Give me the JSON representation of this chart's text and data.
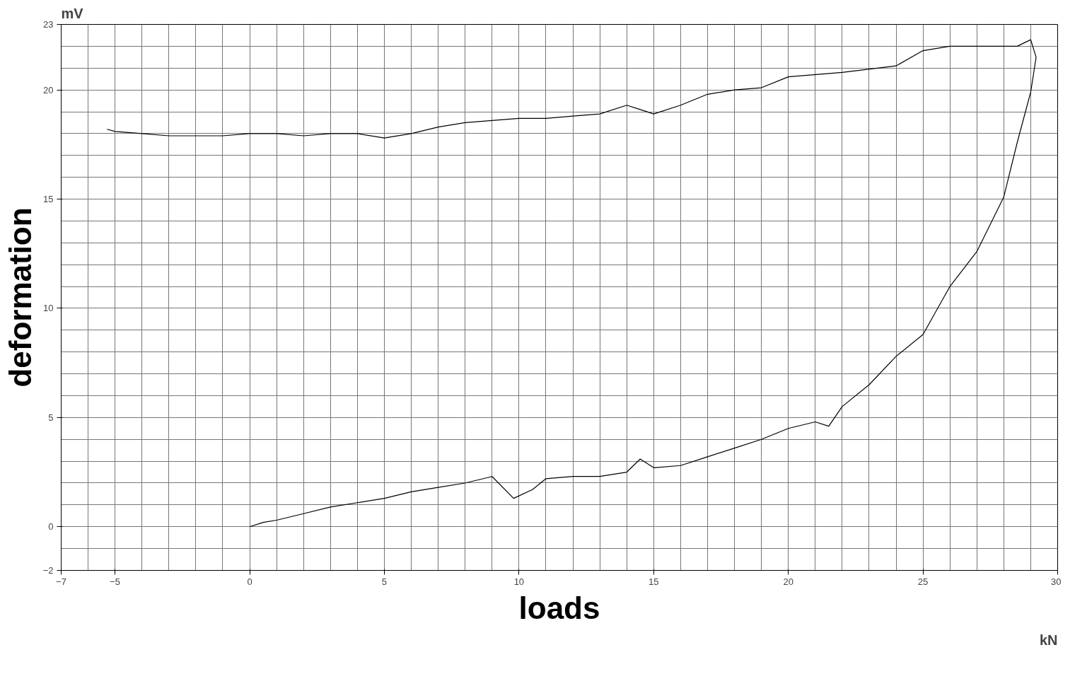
{
  "chart_data": {
    "type": "line",
    "xlabel": "loads",
    "ylabel": "deformation",
    "annotations": [
      "mV",
      "kN"
    ],
    "xlim": [
      -7,
      30
    ],
    "xticks": [
      -7,
      -5,
      0,
      5,
      10,
      15,
      20,
      25,
      30
    ],
    "ylim": [
      -2,
      23
    ],
    "yticks": [
      -2,
      0,
      5,
      10,
      15,
      20,
      23
    ],
    "grid": true,
    "series": [
      {
        "color": "#000000",
        "x": [
          0,
          0.5,
          1,
          2,
          3,
          4,
          5,
          6,
          7,
          8,
          9,
          9.8,
          10.5,
          11,
          12,
          13,
          14,
          14.5,
          15,
          16,
          17,
          18,
          19,
          20,
          21,
          21.5,
          22,
          23,
          24,
          25,
          26,
          27,
          28,
          28.5,
          29,
          29.2,
          29,
          28.5,
          27,
          26,
          25,
          24,
          22,
          20,
          19,
          18,
          17,
          16,
          15,
          14.5,
          14,
          13,
          12,
          11,
          10,
          9,
          8,
          7,
          6,
          5,
          4,
          3,
          2,
          1,
          0,
          -1,
          -2,
          -3,
          -4,
          -5,
          -5.3
        ],
        "values": [
          0,
          0.2,
          0.3,
          0.6,
          0.9,
          1.1,
          1.3,
          1.6,
          1.8,
          2.0,
          2.3,
          1.3,
          1.7,
          2.2,
          2.3,
          2.3,
          2.5,
          3.1,
          2.7,
          2.8,
          3.2,
          3.6,
          4.0,
          4.5,
          4.8,
          4.6,
          5.5,
          6.5,
          7.8,
          8.8,
          11,
          12.6,
          15.1,
          17.6,
          19.9,
          21.5,
          22.3,
          22,
          22,
          22,
          21.8,
          21.1,
          20.8,
          20.6,
          20.1,
          20.0,
          19.8,
          19.3,
          18.9,
          19.1,
          19.3,
          18.9,
          18.8,
          18.7,
          18.7,
          18.6,
          18.5,
          18.3,
          18.0,
          17.8,
          18.0,
          18.0,
          17.9,
          18.0,
          18.0,
          17.9,
          17.9,
          17.9,
          18.0,
          18.1,
          18.2
        ]
      }
    ]
  }
}
